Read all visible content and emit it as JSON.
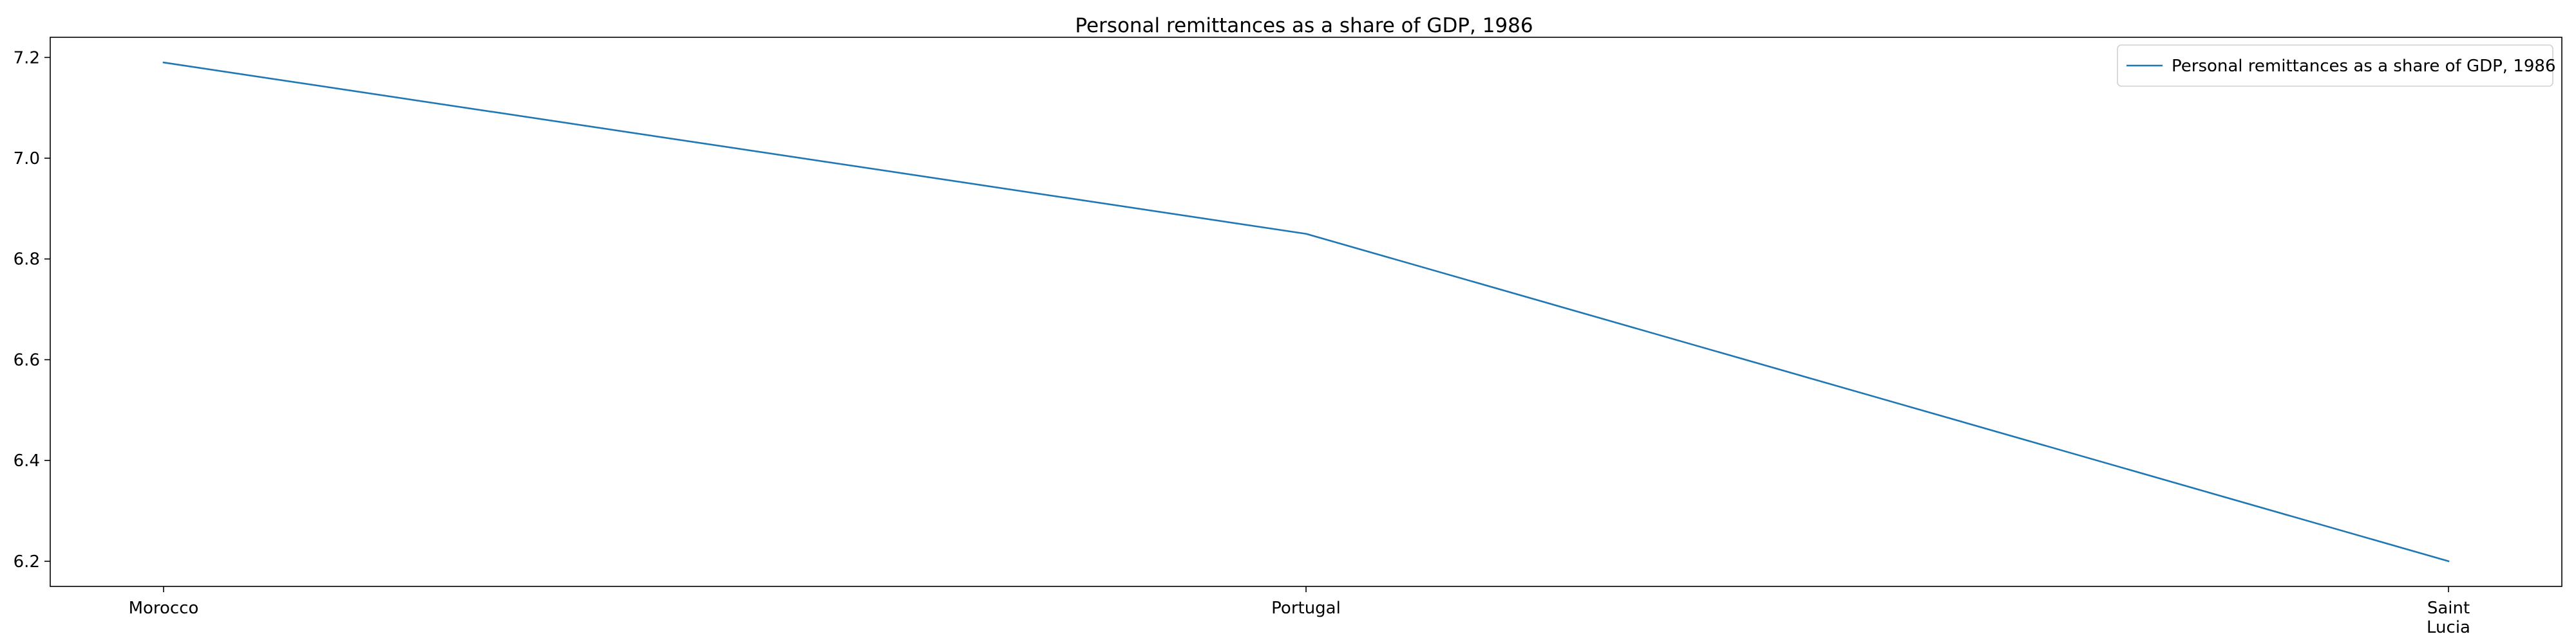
{
  "chart_data": {
    "type": "line",
    "title": "Personal remittances as a share of GDP, 1986",
    "xlabel": "",
    "ylabel": "",
    "categories": [
      "Morocco",
      "Portugal",
      "Saint Lucia"
    ],
    "category_label_lines": [
      [
        "Morocco"
      ],
      [
        "Portugal"
      ],
      [
        "Saint",
        "Lucia"
      ]
    ],
    "series": [
      {
        "name": "Personal remittances as a share of GDP, 1986",
        "values": [
          7.19,
          6.85,
          6.2
        ],
        "color": "#1f77b4"
      }
    ],
    "ylim": [
      6.15,
      7.24
    ],
    "yticks": [
      6.2,
      6.4,
      6.6,
      6.8,
      7.0,
      7.2
    ],
    "ytick_labels": [
      "6.2",
      "6.4",
      "6.6",
      "6.8",
      "7.0",
      "7.2"
    ],
    "grid": false,
    "legend_position": "upper right"
  }
}
